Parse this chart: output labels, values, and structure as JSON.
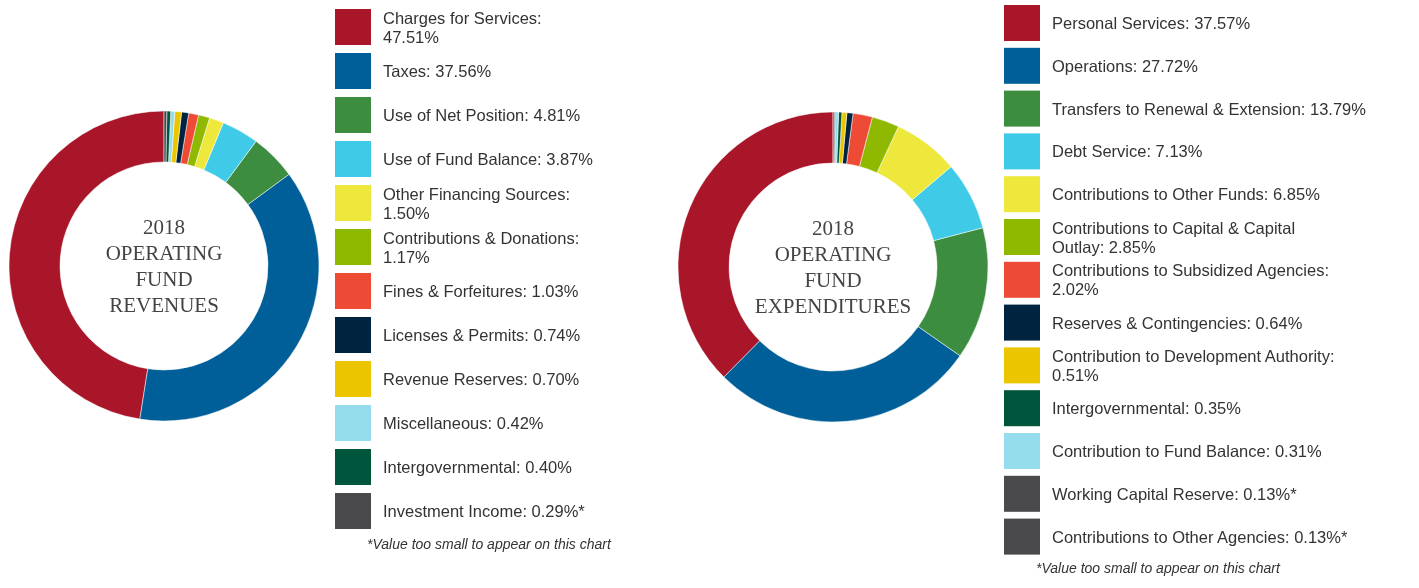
{
  "chart_data": [
    {
      "type": "donut",
      "title": "2018 OPERATING FUND REVENUES",
      "legend": "right",
      "categories": [
        "Charges for Services: 47.51%",
        "Taxes: 37.56%",
        "Use of Net Position: 4.81%",
        "Use of Fund Balance: 3.87%",
        "Other Financing Sources: 1.50%",
        "Contributions & Donations: 1.17%",
        "Fines & Forfeitures: 1.03%",
        "Licenses & Permits: 0.74%",
        "Revenue Reserves: 0.70%",
        "Miscellaneous: 0.42%",
        "Intergovernmental: 0.40%",
        "Investment Income: 0.29%*"
      ],
      "values": [
        47.51,
        37.56,
        4.81,
        3.87,
        1.5,
        1.17,
        1.03,
        0.74,
        0.7,
        0.42,
        0.4,
        0.29
      ],
      "colors": [
        "#a91629",
        "#005f99",
        "#3d8d40",
        "#3fcbe8",
        "#ede83b",
        "#8fb900",
        "#ee4b36",
        "#002440",
        "#ebc600",
        "#95dcec",
        "#00553d",
        "#4a4a4c"
      ],
      "annotations": [
        "*Value too small to appear on this chart"
      ]
    },
    {
      "type": "donut",
      "title": "2018 OPERATING FUND EXPENDITURES",
      "legend": "right",
      "categories": [
        "Personal Services: 37.57%",
        "Operations: 27.72%",
        "Transfers to Renewal & Extension: 13.79%",
        "Debt Service: 7.13%",
        "Contributions to Other Funds: 6.85%",
        "Contributions to Capital & Capital Outlay: 2.85%",
        "Contributions to Subsidized Agencies: 2.02%",
        "Reserves & Contingencies: 0.64%",
        "Contribution to Development Authority: 0.51%",
        "Intergovernmental: 0.35%",
        "Contribution to Fund Balance: 0.31%",
        "Working Capital Reserve: 0.13%*",
        "Contributions to Other Agencies: 0.13%*"
      ],
      "values": [
        37.57,
        27.72,
        13.79,
        7.13,
        6.85,
        2.85,
        2.02,
        0.64,
        0.51,
        0.35,
        0.31,
        0.13,
        0.13
      ],
      "colors": [
        "#a91629",
        "#005f99",
        "#3d8d40",
        "#3fcbe8",
        "#ede83b",
        "#8fb900",
        "#ee4b36",
        "#002440",
        "#ebc600",
        "#00553d",
        "#95dcec",
        "#4a4a4c",
        "#4a4a4c"
      ],
      "annotations": [
        "*Value too small to appear on this chart"
      ]
    }
  ]
}
